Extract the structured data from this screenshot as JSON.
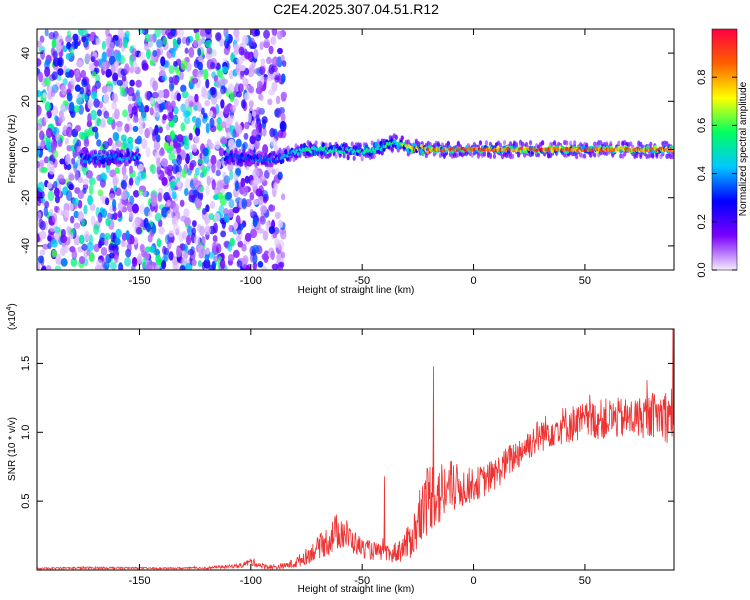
{
  "figure_title": "C2E4.2025.307.04.51.R12",
  "chart_data": [
    {
      "type": "heatmap",
      "id": "spectrogram",
      "xlabel": "Height of straight line (km)",
      "ylabel": "Frequency (Hz)",
      "xlim": [
        -196,
        90
      ],
      "ylim": [
        -50,
        50
      ],
      "xticks": [
        -150,
        -100,
        -50,
        0,
        50
      ],
      "yticks": [
        -40,
        -20,
        0,
        20,
        40
      ],
      "colorbar": {
        "label": "Normalized spectral amplitude",
        "range": [
          0,
          1
        ],
        "ticks": [
          0.0,
          0.2,
          0.4,
          0.6,
          0.8
        ],
        "colors": [
          "#f4ecff",
          "#7a00ff",
          "#0000ff",
          "#00c8ff",
          "#00ff60",
          "#ffff00",
          "#ff6000",
          "#ff0040"
        ]
      },
      "ridge": {
        "x": [
          -170,
          -155,
          -110,
          -90,
          -75,
          -60,
          -50,
          -40,
          -35,
          -30,
          -20,
          -10,
          0,
          50,
          90
        ],
        "freq_hz": [
          -4,
          -3,
          -3,
          -4,
          0,
          0,
          -1,
          1,
          3,
          1,
          0,
          0,
          0,
          0,
          0
        ],
        "peak_amplitude": [
          0.4,
          0.45,
          0.35,
          0.4,
          0.55,
          0.6,
          0.55,
          0.6,
          0.55,
          0.8,
          0.95,
          1.0,
          1.0,
          1.0,
          0.95
        ]
      },
      "noise_regions": [
        {
          "x_range": [
            -196,
            -107
          ],
          "density": "high"
        },
        {
          "x_range": [
            -107,
            -85
          ],
          "density": "medium"
        }
      ]
    },
    {
      "type": "line",
      "id": "snr",
      "xlabel": "Height of straight line (km)",
      "ylabel": "SNR (10 * v/v)",
      "scale_label": "(x10",
      "scale_exponent": "4",
      "scale_close": ")",
      "xlim": [
        -196,
        90
      ],
      "ylim": [
        0,
        1.75
      ],
      "xticks": [
        -150,
        -100,
        -50,
        0,
        50
      ],
      "yticks": [
        0.5,
        1.0,
        1.5
      ],
      "ytick_labels": [
        "0.5",
        "1.0",
        "1.5"
      ],
      "color": "#ee3333",
      "series": [
        {
          "name": "SNR",
          "x": [
            -196,
            -180,
            -160,
            -140,
            -120,
            -105,
            -100,
            -95,
            -90,
            -85,
            -80,
            -75,
            -70,
            -65,
            -60,
            -55,
            -50,
            -45,
            -42,
            -40,
            -38,
            -35,
            -30,
            -25,
            -22,
            -20,
            -18,
            -15,
            -10,
            -5,
            0,
            5,
            10,
            15,
            20,
            25,
            30,
            35,
            40,
            50,
            60,
            70,
            80,
            85,
            88,
            90
          ],
          "y": [
            0.01,
            0.015,
            0.015,
            0.012,
            0.015,
            0.03,
            0.06,
            0.03,
            0.02,
            0.03,
            0.05,
            0.1,
            0.16,
            0.22,
            0.3,
            0.22,
            0.16,
            0.14,
            0.13,
            0.12,
            0.11,
            0.13,
            0.18,
            0.32,
            0.45,
            0.55,
            0.55,
            0.55,
            0.6,
            0.6,
            0.62,
            0.65,
            0.7,
            0.78,
            0.85,
            0.92,
            0.98,
            1.02,
            1.05,
            1.08,
            1.1,
            1.1,
            1.12,
            1.13,
            1.12,
            1.1
          ],
          "noise_amp": [
            0.005,
            0.008,
            0.008,
            0.005,
            0.008,
            0.015,
            0.03,
            0.02,
            0.02,
            0.02,
            0.04,
            0.06,
            0.08,
            0.12,
            0.15,
            0.1,
            0.07,
            0.07,
            0.06,
            0.06,
            0.06,
            0.08,
            0.12,
            0.2,
            0.25,
            0.28,
            0.25,
            0.25,
            0.2,
            0.15,
            0.12,
            0.12,
            0.12,
            0.12,
            0.12,
            0.12,
            0.13,
            0.13,
            0.14,
            0.14,
            0.15,
            0.15,
            0.16,
            0.18,
            0.22,
            0.25
          ]
        }
      ],
      "spikes": [
        {
          "x": -18,
          "y": 1.48
        },
        {
          "x": -40,
          "y": 0.68
        },
        {
          "x": 89.5,
          "y": 1.75
        }
      ]
    }
  ]
}
